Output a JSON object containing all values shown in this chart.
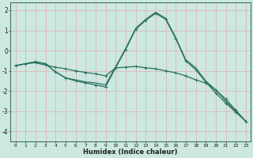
{
  "xlabel": "Humidex (Indice chaleur)",
  "background_color": "#cce8e0",
  "grid_color": "#ddb8b8",
  "line_color": "#2a7060",
  "xlim": [
    -0.5,
    23.5
  ],
  "ylim": [
    -4.5,
    2.4
  ],
  "yticks": [
    -4,
    -3,
    -2,
    -1,
    0,
    1,
    2
  ],
  "xticks": [
    0,
    1,
    2,
    3,
    4,
    5,
    6,
    7,
    8,
    9,
    10,
    11,
    12,
    13,
    14,
    15,
    16,
    17,
    18,
    19,
    20,
    21,
    22,
    23
  ],
  "line1_x": [
    0,
    1,
    2,
    3,
    4,
    5,
    6,
    7,
    8,
    9,
    10,
    11,
    12,
    13,
    14,
    15,
    16,
    17,
    18,
    19,
    20,
    21,
    22,
    23
  ],
  "line1_y": [
    -0.75,
    -0.65,
    -0.6,
    -0.72,
    -0.82,
    -0.9,
    -1.0,
    -1.08,
    -1.15,
    -1.25,
    -0.85,
    -0.82,
    -0.78,
    -0.85,
    -0.9,
    -1.0,
    -1.1,
    -1.25,
    -1.45,
    -1.6,
    -1.95,
    -2.4,
    -2.95,
    -3.5
  ],
  "line2_x": [
    0,
    1,
    2,
    3,
    4,
    5,
    6,
    7,
    8,
    9,
    10,
    11,
    12,
    13,
    14,
    15,
    16,
    17,
    18,
    19,
    20,
    21,
    22,
    23
  ],
  "line2_y": [
    -0.75,
    -0.65,
    -0.55,
    -0.65,
    -1.05,
    -1.35,
    -1.5,
    -1.6,
    -1.7,
    -1.8,
    -0.85,
    0.05,
    1.05,
    1.5,
    1.85,
    1.55,
    0.6,
    -0.5,
    -0.95,
    -1.55,
    -2.1,
    -2.6,
    -3.05,
    -3.5
  ],
  "line3_x": [
    0,
    1,
    2,
    3,
    4,
    5,
    6,
    7,
    8,
    9,
    10,
    11,
    12,
    13,
    14,
    15,
    16,
    17,
    18,
    19,
    20,
    21,
    22,
    23
  ],
  "line3_y": [
    -0.75,
    -0.65,
    -0.55,
    -0.65,
    -1.05,
    -1.35,
    -1.45,
    -1.55,
    -1.6,
    -1.7,
    -0.8,
    0.1,
    1.1,
    1.55,
    1.9,
    1.6,
    0.65,
    -0.45,
    -0.85,
    -1.5,
    -1.95,
    -2.5,
    -3.0,
    -3.5
  ]
}
